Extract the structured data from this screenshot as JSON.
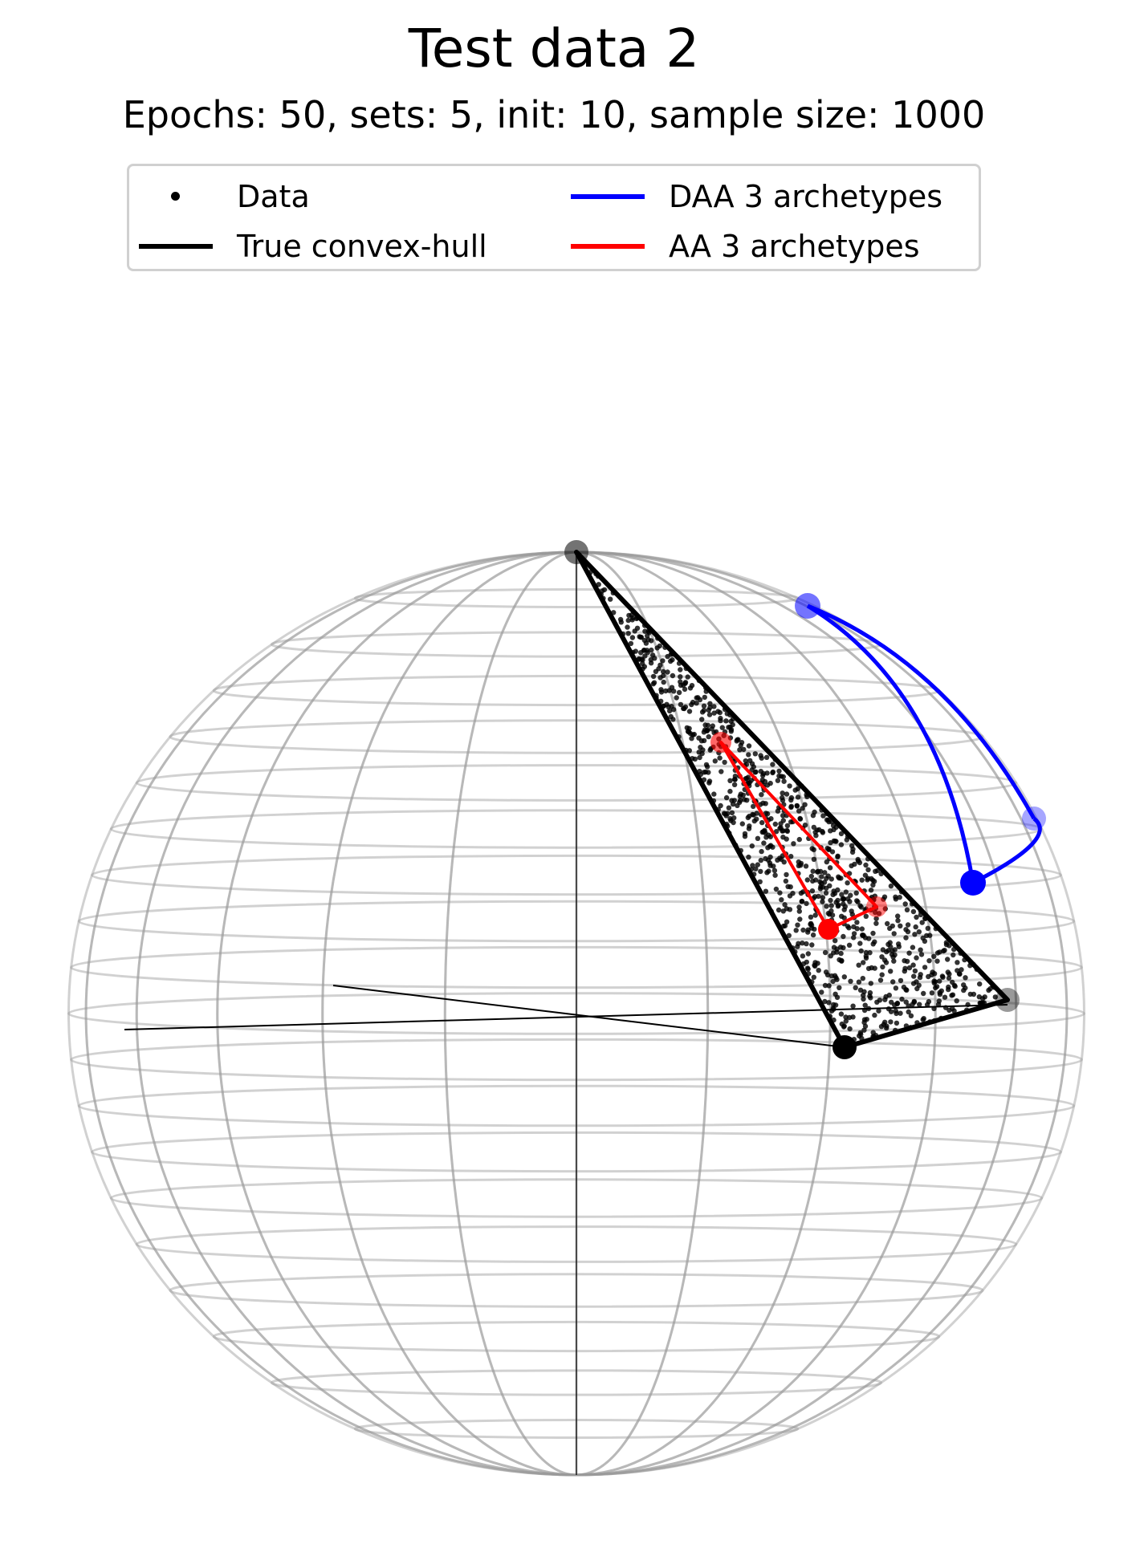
{
  "chart_data": {
    "type": "scatter",
    "title": "Test data 2",
    "subtitle": "Epochs: 50, sets: 5, init: 10, sample size: 1000",
    "projection": "3d-sphere",
    "legend_position": "top-center",
    "legend": [
      {
        "label": "Data",
        "marker": "dot",
        "color": "#000000"
      },
      {
        "label": "True convex-hull",
        "marker": "line",
        "color": "#000000"
      },
      {
        "label": "DAA 3 archetypes",
        "marker": "line",
        "color": "#0000ff"
      },
      {
        "label": "AA 3 archetypes",
        "marker": "line",
        "color": "#ff0000"
      }
    ],
    "sample_size": 1000,
    "true_hull_vertices": [
      [
        0.0,
        0.0,
        1.0
      ],
      [
        0.85,
        -0.35,
        0.4
      ],
      [
        1.0,
        0.0,
        0.0
      ]
    ],
    "daa_archetypes": [
      [
        0.45,
        0.0,
        0.89
      ],
      [
        0.85,
        0.0,
        0.52
      ],
      [
        0.78,
        -0.25,
        0.57
      ]
    ],
    "aa_archetypes": [
      [
        0.38,
        -0.15,
        0.62
      ],
      [
        0.55,
        -0.2,
        0.2
      ],
      [
        0.65,
        -0.1,
        0.25
      ]
    ],
    "colors": {
      "data": "#000000",
      "hull": "#000000",
      "daa": "#0000ff",
      "aa": "#ff0000",
      "sphere": "#9a9a9a"
    }
  }
}
